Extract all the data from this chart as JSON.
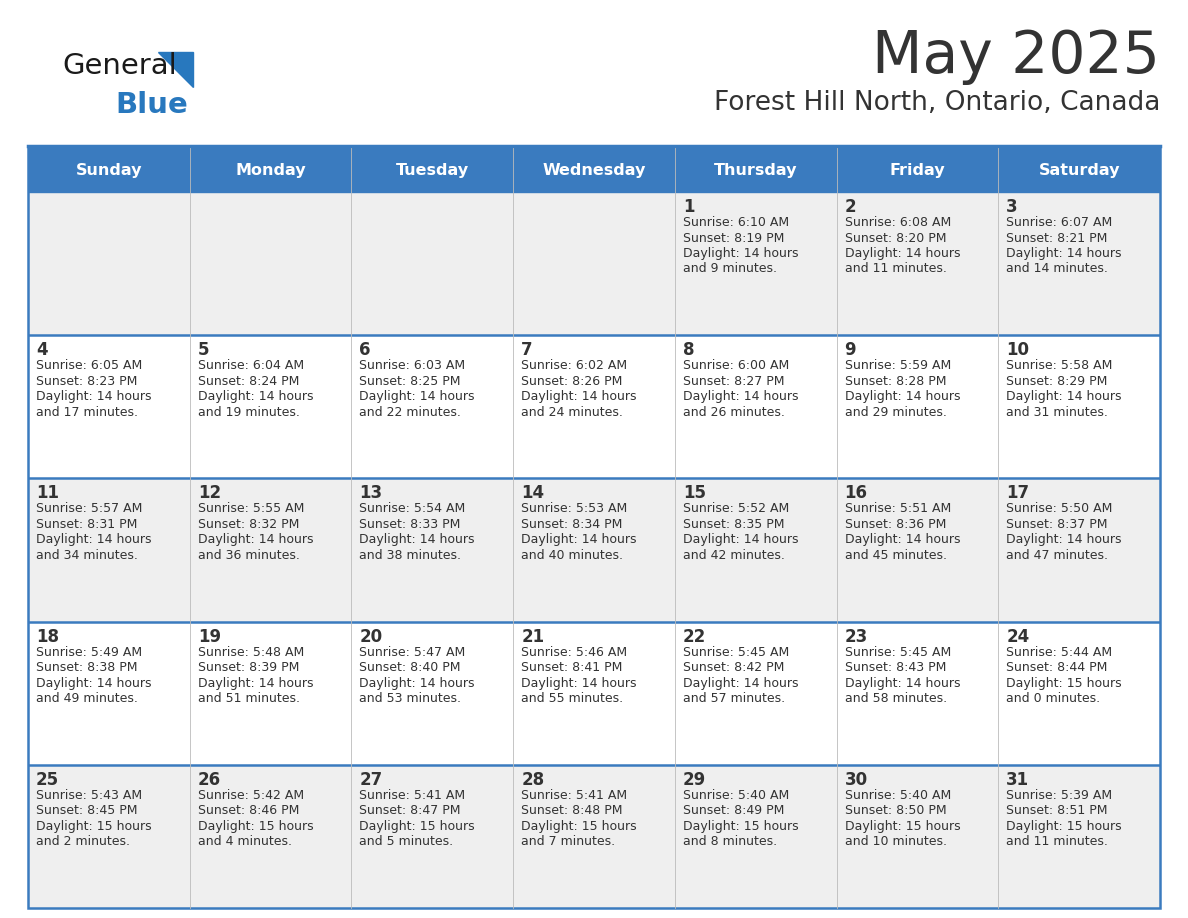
{
  "title": "May 2025",
  "subtitle": "Forest Hill North, Ontario, Canada",
  "days_of_week": [
    "Sunday",
    "Monday",
    "Tuesday",
    "Wednesday",
    "Thursday",
    "Friday",
    "Saturday"
  ],
  "header_bg": "#3a7bbf",
  "header_text": "#ffffff",
  "cell_bg_light": "#efefef",
  "cell_bg_white": "#ffffff",
  "row_line_color": "#3a7bbf",
  "text_color": "#333333",
  "logo_general_color": "#1a1a1a",
  "logo_blue_color": "#2878be",
  "calendar": [
    [
      null,
      null,
      null,
      null,
      {
        "day": 1,
        "sunrise": "6:10 AM",
        "sunset": "8:19 PM",
        "daylight": "14 hours",
        "daylight2": "and 9 minutes."
      },
      {
        "day": 2,
        "sunrise": "6:08 AM",
        "sunset": "8:20 PM",
        "daylight": "14 hours",
        "daylight2": "and 11 minutes."
      },
      {
        "day": 3,
        "sunrise": "6:07 AM",
        "sunset": "8:21 PM",
        "daylight": "14 hours",
        "daylight2": "and 14 minutes."
      }
    ],
    [
      {
        "day": 4,
        "sunrise": "6:05 AM",
        "sunset": "8:23 PM",
        "daylight": "14 hours",
        "daylight2": "and 17 minutes."
      },
      {
        "day": 5,
        "sunrise": "6:04 AM",
        "sunset": "8:24 PM",
        "daylight": "14 hours",
        "daylight2": "and 19 minutes."
      },
      {
        "day": 6,
        "sunrise": "6:03 AM",
        "sunset": "8:25 PM",
        "daylight": "14 hours",
        "daylight2": "and 22 minutes."
      },
      {
        "day": 7,
        "sunrise": "6:02 AM",
        "sunset": "8:26 PM",
        "daylight": "14 hours",
        "daylight2": "and 24 minutes."
      },
      {
        "day": 8,
        "sunrise": "6:00 AM",
        "sunset": "8:27 PM",
        "daylight": "14 hours",
        "daylight2": "and 26 minutes."
      },
      {
        "day": 9,
        "sunrise": "5:59 AM",
        "sunset": "8:28 PM",
        "daylight": "14 hours",
        "daylight2": "and 29 minutes."
      },
      {
        "day": 10,
        "sunrise": "5:58 AM",
        "sunset": "8:29 PM",
        "daylight": "14 hours",
        "daylight2": "and 31 minutes."
      }
    ],
    [
      {
        "day": 11,
        "sunrise": "5:57 AM",
        "sunset": "8:31 PM",
        "daylight": "14 hours",
        "daylight2": "and 34 minutes."
      },
      {
        "day": 12,
        "sunrise": "5:55 AM",
        "sunset": "8:32 PM",
        "daylight": "14 hours",
        "daylight2": "and 36 minutes."
      },
      {
        "day": 13,
        "sunrise": "5:54 AM",
        "sunset": "8:33 PM",
        "daylight": "14 hours",
        "daylight2": "and 38 minutes."
      },
      {
        "day": 14,
        "sunrise": "5:53 AM",
        "sunset": "8:34 PM",
        "daylight": "14 hours",
        "daylight2": "and 40 minutes."
      },
      {
        "day": 15,
        "sunrise": "5:52 AM",
        "sunset": "8:35 PM",
        "daylight": "14 hours",
        "daylight2": "and 42 minutes."
      },
      {
        "day": 16,
        "sunrise": "5:51 AM",
        "sunset": "8:36 PM",
        "daylight": "14 hours",
        "daylight2": "and 45 minutes."
      },
      {
        "day": 17,
        "sunrise": "5:50 AM",
        "sunset": "8:37 PM",
        "daylight": "14 hours",
        "daylight2": "and 47 minutes."
      }
    ],
    [
      {
        "day": 18,
        "sunrise": "5:49 AM",
        "sunset": "8:38 PM",
        "daylight": "14 hours",
        "daylight2": "and 49 minutes."
      },
      {
        "day": 19,
        "sunrise": "5:48 AM",
        "sunset": "8:39 PM",
        "daylight": "14 hours",
        "daylight2": "and 51 minutes."
      },
      {
        "day": 20,
        "sunrise": "5:47 AM",
        "sunset": "8:40 PM",
        "daylight": "14 hours",
        "daylight2": "and 53 minutes."
      },
      {
        "day": 21,
        "sunrise": "5:46 AM",
        "sunset": "8:41 PM",
        "daylight": "14 hours",
        "daylight2": "and 55 minutes."
      },
      {
        "day": 22,
        "sunrise": "5:45 AM",
        "sunset": "8:42 PM",
        "daylight": "14 hours",
        "daylight2": "and 57 minutes."
      },
      {
        "day": 23,
        "sunrise": "5:45 AM",
        "sunset": "8:43 PM",
        "daylight": "14 hours",
        "daylight2": "and 58 minutes."
      },
      {
        "day": 24,
        "sunrise": "5:44 AM",
        "sunset": "8:44 PM",
        "daylight": "15 hours",
        "daylight2": "and 0 minutes."
      }
    ],
    [
      {
        "day": 25,
        "sunrise": "5:43 AM",
        "sunset": "8:45 PM",
        "daylight": "15 hours",
        "daylight2": "and 2 minutes."
      },
      {
        "day": 26,
        "sunrise": "5:42 AM",
        "sunset": "8:46 PM",
        "daylight": "15 hours",
        "daylight2": "and 4 minutes."
      },
      {
        "day": 27,
        "sunrise": "5:41 AM",
        "sunset": "8:47 PM",
        "daylight": "15 hours",
        "daylight2": "and 5 minutes."
      },
      {
        "day": 28,
        "sunrise": "5:41 AM",
        "sunset": "8:48 PM",
        "daylight": "15 hours",
        "daylight2": "and 7 minutes."
      },
      {
        "day": 29,
        "sunrise": "5:40 AM",
        "sunset": "8:49 PM",
        "daylight": "15 hours",
        "daylight2": "and 8 minutes."
      },
      {
        "day": 30,
        "sunrise": "5:40 AM",
        "sunset": "8:50 PM",
        "daylight": "15 hours",
        "daylight2": "and 10 minutes."
      },
      {
        "day": 31,
        "sunrise": "5:39 AM",
        "sunset": "8:51 PM",
        "daylight": "15 hours",
        "daylight2": "and 11 minutes."
      }
    ]
  ]
}
